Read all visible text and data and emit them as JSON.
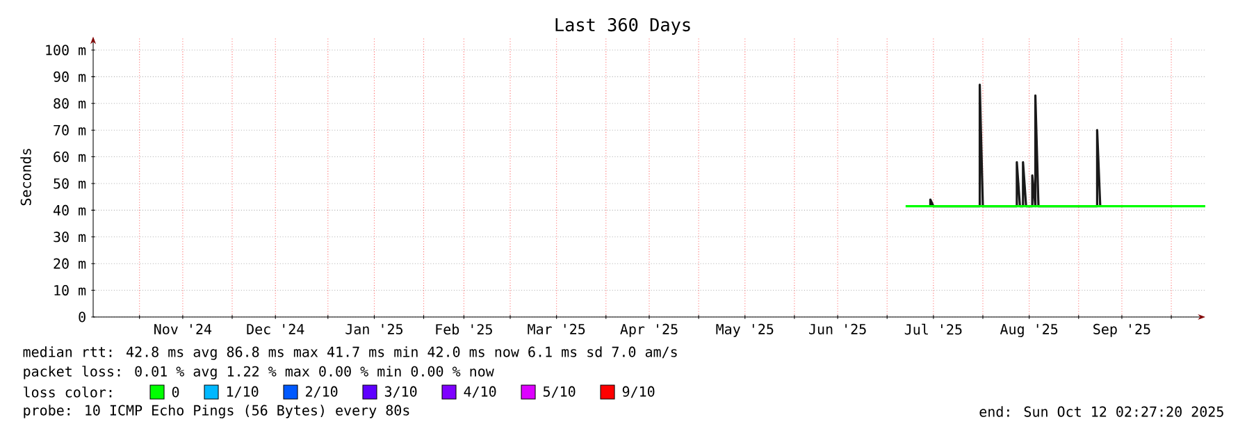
{
  "chart_data": {
    "type": "line",
    "title": "Last 360 Days",
    "ylabel": "Seconds",
    "xlim": [
      "2024-10-17",
      "2025-10-12"
    ],
    "ylim": [
      0,
      105
    ],
    "xticks": [
      {
        "value": "2024-11-01",
        "label": null
      },
      {
        "value": "2024-11-15",
        "label": "Nov '24"
      },
      {
        "value": "2024-12-01",
        "label": null
      },
      {
        "value": "2024-12-15",
        "label": "Dec '24"
      },
      {
        "value": "2025-01-01",
        "label": null
      },
      {
        "value": "2025-01-16",
        "label": "Jan '25"
      },
      {
        "value": "2025-02-01",
        "label": null
      },
      {
        "value": "2025-02-14",
        "label": "Feb '25"
      },
      {
        "value": "2025-03-01",
        "label": null
      },
      {
        "value": "2025-03-16",
        "label": "Mar '25"
      },
      {
        "value": "2025-04-01",
        "label": null
      },
      {
        "value": "2025-04-15",
        "label": "Apr '25"
      },
      {
        "value": "2025-05-01",
        "label": null
      },
      {
        "value": "2025-05-16",
        "label": "May '25"
      },
      {
        "value": "2025-06-01",
        "label": null
      },
      {
        "value": "2025-06-15",
        "label": "Jun '25"
      },
      {
        "value": "2025-07-01",
        "label": null
      },
      {
        "value": "2025-07-16",
        "label": "Jul '25"
      },
      {
        "value": "2025-08-01",
        "label": null
      },
      {
        "value": "2025-08-16",
        "label": "Aug '25"
      },
      {
        "value": "2025-09-01",
        "label": null
      },
      {
        "value": "2025-09-15",
        "label": "Sep '25"
      },
      {
        "value": "2025-10-01",
        "label": null
      }
    ],
    "yticks": [
      0,
      {
        "value": 10,
        "label": "10 m"
      },
      {
        "value": 20,
        "label": "20 m"
      },
      {
        "value": 30,
        "label": "30 m"
      },
      {
        "value": 40,
        "label": "40 m"
      },
      {
        "value": 50,
        "label": "50 m"
      },
      {
        "value": 60,
        "label": "60 m"
      },
      {
        "value": 70,
        "label": "70 m"
      },
      {
        "value": 80,
        "label": "80 m"
      },
      {
        "value": 90,
        "label": "90 m"
      },
      {
        "value": 100,
        "label": "100 m"
      }
    ],
    "grid": true,
    "legend": "bottom",
    "legend_title": "loss color:",
    "series": [
      {
        "color": "#1a1a1a",
        "x": [
          "2025-07-15",
          "2025-07-15",
          "2025-07-16",
          "2025-07-31",
          "2025-07-31",
          "2025-08-01",
          "2025-08-12",
          "2025-08-12",
          "2025-08-13",
          "2025-08-14",
          "2025-08-14",
          "2025-08-15",
          "2025-08-17",
          "2025-08-17",
          "2025-08-18",
          "2025-08-18",
          "2025-08-19",
          "2025-09-07",
          "2025-09-07",
          "2025-09-08"
        ],
        "values": [
          41.5,
          44,
          41.5,
          41.5,
          87,
          41.5,
          41.5,
          58,
          41.5,
          41.5,
          58,
          41.5,
          41.5,
          53,
          41.5,
          83,
          41.5,
          41.5,
          70,
          41.5
        ]
      },
      {
        "name": "0",
        "color": "#00ff00",
        "x": [
          "2025-07-07",
          "2025-07-31",
          "2025-08-01",
          "2025-08-18",
          "2025-09-07",
          "2025-10-12"
        ],
        "values": [
          41.5,
          41.5,
          41.5,
          41.5,
          41.5,
          41.5
        ]
      },
      {
        "name": "1/10",
        "color": "#00b8ff"
      },
      {
        "name": "2/10",
        "color": "#0059ff"
      },
      {
        "name": "3/10",
        "color": "#5e00ff"
      },
      {
        "name": "4/10",
        "color": "#7e00ff"
      },
      {
        "name": "5/10",
        "color": "#dd00ff"
      },
      {
        "name": "9/10",
        "color": "#ff0000"
      }
    ],
    "annotations": [
      "median rtt:  42.8 ms avg  86.8 ms max  41.7 ms min  42.0 ms now  6.1 ms sd  7.0   am/s",
      "packet loss: 0.01 % avg  1.22 % max  0.00 % min  0.00 % now",
      "probe:       10 ICMP Echo Pings (56 Bytes) every 80s",
      "end: Sun Oct 12 02:27:20 2025"
    ]
  }
}
